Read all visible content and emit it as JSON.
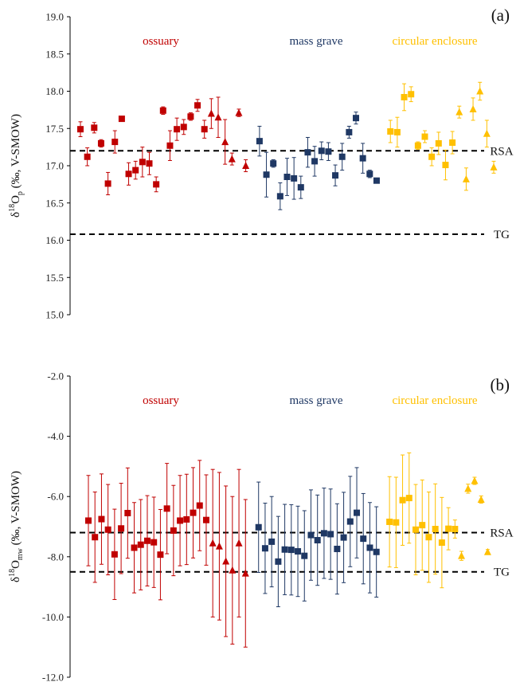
{
  "colors": {
    "ossuary": "#c00000",
    "mass_grave": "#1f3864",
    "circular_enclosure": "#ffc000",
    "axis": "#000000"
  },
  "chart_data": [
    {
      "type": "scatter",
      "panel_label": "(a)",
      "ylabel": {
        "main": "δ",
        "sup": "18",
        "mid": "O",
        "sub": "p",
        "rest": " (‰, V-SMOW)"
      },
      "ylim": [
        15.0,
        19.0
      ],
      "yticks": [
        15.0,
        15.5,
        16.0,
        16.5,
        17.0,
        17.5,
        18.0,
        18.5,
        19.0
      ],
      "ytick_labels": [
        "15.0",
        "15.5",
        "16.0",
        "16.5",
        "17.0",
        "17.5",
        "18.0",
        "18.5",
        "19.0"
      ],
      "x_axis": "unlabeled sample index",
      "grid": false,
      "reference_lines": [
        {
          "label": "RSA",
          "value": 17.2
        },
        {
          "label": "TG",
          "value": 16.08
        }
      ],
      "groups": [
        {
          "label": "ossuary",
          "color_key": "ossuary",
          "label_x": 202
        },
        {
          "label": "mass grave",
          "color_key": "mass_grave",
          "label_x": 397
        },
        {
          "label": "circular enclosure",
          "color_key": "circular_enclosure",
          "label_x": 546
        }
      ],
      "series": [
        {
          "group": 0,
          "marker": "square",
          "points": [
            {
              "x": 1,
              "y": 17.49,
              "err": 0.1
            },
            {
              "x": 2,
              "y": 17.12,
              "err": 0.12
            },
            {
              "x": 3,
              "y": 17.51,
              "err": 0.07
            },
            {
              "x": 4,
              "y": 17.3,
              "err": 0.05
            },
            {
              "x": 5,
              "y": 16.76,
              "err": 0.15
            },
            {
              "x": 6,
              "y": 17.32,
              "err": 0.15
            },
            {
              "x": 7,
              "y": 17.63,
              "err": 0.03
            },
            {
              "x": 8,
              "y": 16.89,
              "err": 0.15
            },
            {
              "x": 9,
              "y": 16.94,
              "err": 0.12
            },
            {
              "x": 10,
              "y": 17.05,
              "err": 0.2
            },
            {
              "x": 11,
              "y": 17.03,
              "err": 0.15
            },
            {
              "x": 12,
              "y": 16.75,
              "err": 0.1
            },
            {
              "x": 13,
              "y": 17.74,
              "err": 0.05
            },
            {
              "x": 14,
              "y": 17.27,
              "err": 0.2
            },
            {
              "x": 15,
              "y": 17.49,
              "err": 0.15
            },
            {
              "x": 16,
              "y": 17.52,
              "err": 0.1
            },
            {
              "x": 17,
              "y": 17.66,
              "err": 0.05
            },
            {
              "x": 18,
              "y": 17.81,
              "err": 0.08
            },
            {
              "x": 19,
              "y": 17.49,
              "err": 0.12
            }
          ]
        },
        {
          "group": 0,
          "marker": "triangle",
          "points": [
            {
              "x": 20,
              "y": 17.7,
              "err": 0.2
            },
            {
              "x": 21,
              "y": 17.65,
              "err": 0.27
            },
            {
              "x": 22,
              "y": 17.32,
              "err": 0.3
            },
            {
              "x": 23,
              "y": 17.09,
              "err": 0.08
            },
            {
              "x": 24,
              "y": 17.71,
              "err": 0.05
            },
            {
              "x": 25,
              "y": 17.0,
              "err": 0.08
            }
          ]
        },
        {
          "group": 1,
          "marker": "square",
          "points": [
            {
              "x": 27,
              "y": 17.33,
              "err": 0.2
            },
            {
              "x": 28,
              "y": 16.88,
              "err": 0.3
            },
            {
              "x": 29,
              "y": 17.03,
              "err": 0.05
            },
            {
              "x": 30,
              "y": 16.59,
              "err": 0.18
            },
            {
              "x": 31,
              "y": 16.85,
              "err": 0.25
            },
            {
              "x": 32,
              "y": 16.83,
              "err": 0.28
            },
            {
              "x": 33,
              "y": 16.71,
              "err": 0.15
            },
            {
              "x": 34,
              "y": 17.18,
              "err": 0.2
            },
            {
              "x": 35,
              "y": 17.06,
              "err": 0.2
            },
            {
              "x": 36,
              "y": 17.2,
              "err": 0.12
            },
            {
              "x": 37,
              "y": 17.19,
              "err": 0.12
            },
            {
              "x": 38,
              "y": 16.87,
              "err": 0.14
            },
            {
              "x": 39,
              "y": 17.12,
              "err": 0.18
            },
            {
              "x": 40,
              "y": 17.45,
              "err": 0.08
            },
            {
              "x": 41,
              "y": 17.64,
              "err": 0.08
            },
            {
              "x": 42,
              "y": 17.1,
              "err": 0.2
            },
            {
              "x": 43,
              "y": 16.89,
              "err": 0.05
            },
            {
              "x": 44,
              "y": 16.8,
              "err": 0.03
            }
          ]
        },
        {
          "group": 2,
          "marker": "square",
          "points": [
            {
              "x": 46,
              "y": 17.46,
              "err": 0.15
            },
            {
              "x": 47,
              "y": 17.45,
              "err": 0.2
            },
            {
              "x": 48,
              "y": 17.92,
              "err": 0.18
            },
            {
              "x": 49,
              "y": 17.96,
              "err": 0.1
            },
            {
              "x": 50,
              "y": 17.27,
              "err": 0.05
            },
            {
              "x": 51,
              "y": 17.39,
              "err": 0.08
            },
            {
              "x": 52,
              "y": 17.12,
              "err": 0.12
            },
            {
              "x": 53,
              "y": 17.3,
              "err": 0.15
            },
            {
              "x": 54,
              "y": 17.01,
              "err": 0.2
            },
            {
              "x": 55,
              "y": 17.31,
              "err": 0.15
            }
          ]
        },
        {
          "group": 2,
          "marker": "triangle",
          "points": [
            {
              "x": 56,
              "y": 17.72,
              "err": 0.08
            },
            {
              "x": 57,
              "y": 16.82,
              "err": 0.15
            },
            {
              "x": 58,
              "y": 17.76,
              "err": 0.15
            },
            {
              "x": 59,
              "y": 18.0,
              "err": 0.12
            },
            {
              "x": 60,
              "y": 17.43,
              "err": 0.18
            },
            {
              "x": 61,
              "y": 16.98,
              "err": 0.08
            }
          ]
        }
      ]
    },
    {
      "type": "scatter",
      "panel_label": "(b)",
      "ylabel": {
        "main": "δ",
        "sup": "18",
        "mid": "O",
        "sub": "mw",
        "rest": " (‰, V-SMOW)"
      },
      "ylim": [
        -12.0,
        -2.0
      ],
      "yticks": [
        -12.0,
        -10.0,
        -8.0,
        -6.0,
        -4.0,
        -2.0
      ],
      "ytick_labels": [
        "-12.0",
        "-10.0",
        "-8.0",
        "-6.0",
        "-4.0",
        "-2.0"
      ],
      "x_axis": "unlabeled sample index",
      "grid": false,
      "reference_lines": [
        {
          "label": "RSA",
          "value": -7.2
        },
        {
          "label": "TG",
          "value": -8.5
        }
      ],
      "groups": [
        {
          "label": "ossuary",
          "color_key": "ossuary",
          "label_x": 202
        },
        {
          "label": "mass grave",
          "color_key": "mass_grave",
          "label_x": 397
        },
        {
          "label": "circular enclosure",
          "color_key": "circular_enclosure",
          "label_x": 546
        }
      ],
      "series": [
        {
          "group": 0,
          "marker": "square",
          "points": [
            {
              "x": 1,
              "y": -6.8,
              "err": 1.5
            },
            {
              "x": 2,
              "y": -7.35,
              "err": 1.5
            },
            {
              "x": 3,
              "y": -6.75,
              "err": 1.5
            },
            {
              "x": 4,
              "y": -7.1,
              "err": 1.5
            },
            {
              "x": 5,
              "y": -7.92,
              "err": 1.5
            },
            {
              "x": 6,
              "y": -7.06,
              "err": 1.5
            },
            {
              "x": 7,
              "y": -6.55,
              "err": 1.5
            },
            {
              "x": 8,
              "y": -7.7,
              "err": 1.5
            },
            {
              "x": 9,
              "y": -7.6,
              "err": 1.5
            },
            {
              "x": 10,
              "y": -7.47,
              "err": 1.5
            },
            {
              "x": 11,
              "y": -7.52,
              "err": 1.5
            },
            {
              "x": 12,
              "y": -7.93,
              "err": 1.5
            },
            {
              "x": 13,
              "y": -6.4,
              "err": 1.5
            },
            {
              "x": 14,
              "y": -7.13,
              "err": 1.5
            },
            {
              "x": 15,
              "y": -6.8,
              "err": 1.5
            },
            {
              "x": 16,
              "y": -6.76,
              "err": 1.5
            },
            {
              "x": 17,
              "y": -6.54,
              "err": 1.5
            },
            {
              "x": 18,
              "y": -6.3,
              "err": 1.5
            },
            {
              "x": 19,
              "y": -6.78,
              "err": 1.5
            }
          ]
        },
        {
          "group": 0,
          "marker": "triangle",
          "points": [
            {
              "x": 20,
              "y": -7.55,
              "err": 2.45
            },
            {
              "x": 21,
              "y": -7.65,
              "err": 2.45
            },
            {
              "x": 22,
              "y": -8.15,
              "err": 2.5
            },
            {
              "x": 23,
              "y": -8.45,
              "err": 2.45
            },
            {
              "x": 24,
              "y": -7.55,
              "err": 2.45
            },
            {
              "x": 25,
              "y": -8.55,
              "err": 2.45
            }
          ]
        },
        {
          "group": 1,
          "marker": "square",
          "points": [
            {
              "x": 27,
              "y": -7.02,
              "err": 1.5
            },
            {
              "x": 28,
              "y": -7.72,
              "err": 1.5
            },
            {
              "x": 29,
              "y": -7.5,
              "err": 1.5
            },
            {
              "x": 30,
              "y": -8.16,
              "err": 1.5
            },
            {
              "x": 31,
              "y": -7.76,
              "err": 1.5
            },
            {
              "x": 32,
              "y": -7.77,
              "err": 1.5
            },
            {
              "x": 33,
              "y": -7.82,
              "err": 1.5
            },
            {
              "x": 34,
              "y": -7.97,
              "err": 1.5
            },
            {
              "x": 35,
              "y": -7.28,
              "err": 1.5
            },
            {
              "x": 36,
              "y": -7.45,
              "err": 1.5
            },
            {
              "x": 37,
              "y": -7.22,
              "err": 1.5
            },
            {
              "x": 38,
              "y": -7.25,
              "err": 1.5
            },
            {
              "x": 39,
              "y": -7.74,
              "err": 1.5
            },
            {
              "x": 40,
              "y": -7.36,
              "err": 1.5
            },
            {
              "x": 41,
              "y": -6.83,
              "err": 1.5
            },
            {
              "x": 42,
              "y": -6.54,
              "err": 1.5
            },
            {
              "x": 43,
              "y": -7.4,
              "err": 1.5
            },
            {
              "x": 44,
              "y": -7.7,
              "err": 1.5
            },
            {
              "x": 45,
              "y": -7.84,
              "err": 1.5
            }
          ]
        },
        {
          "group": 2,
          "marker": "square",
          "points": [
            {
              "x": 47,
              "y": -6.84,
              "err": 1.5
            },
            {
              "x": 48,
              "y": -6.86,
              "err": 1.5
            },
            {
              "x": 49,
              "y": -6.12,
              "err": 1.5
            },
            {
              "x": 50,
              "y": -6.05,
              "err": 1.5
            },
            {
              "x": 51,
              "y": -7.1,
              "err": 1.5
            },
            {
              "x": 52,
              "y": -6.95,
              "err": 1.5
            },
            {
              "x": 53,
              "y": -7.35,
              "err": 1.5
            },
            {
              "x": 54,
              "y": -7.08,
              "err": 1.5
            },
            {
              "x": 55,
              "y": -7.53,
              "err": 1.5
            },
            {
              "x": 56,
              "y": -7.07,
              "err": 0.7
            },
            {
              "x": 57,
              "y": -7.08,
              "err": 0.3
            }
          ]
        },
        {
          "group": 2,
          "marker": "triangle",
          "points": [
            {
              "x": 58,
              "y": -7.97,
              "err": 0.15
            },
            {
              "x": 59,
              "y": -5.74,
              "err": 0.15
            },
            {
              "x": 60,
              "y": -5.48,
              "err": 0.12
            },
            {
              "x": 61,
              "y": -6.1,
              "err": 0.12
            },
            {
              "x": 62,
              "y": -7.84,
              "err": 0.08
            }
          ]
        }
      ]
    }
  ]
}
